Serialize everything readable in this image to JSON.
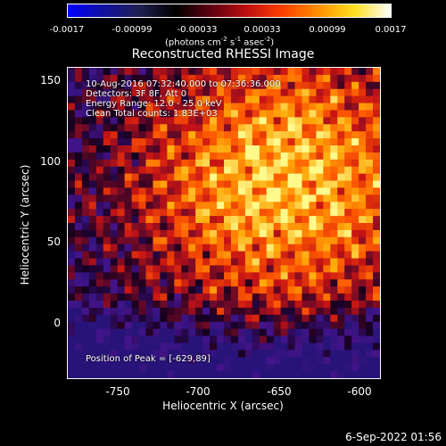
{
  "colorbar": {
    "tick_labels": [
      "-0.0017",
      "-0.00099",
      "-0.00033",
      "0.00033",
      "0.00099",
      "0.0017"
    ],
    "unit_label_prefix": "(photons cm",
    "unit_sup1": "-2",
    "unit_mid1": " s",
    "unit_sup2": "-1",
    "unit_mid2": " asec",
    "unit_sup3": "-2",
    "unit_suffix": ")",
    "colors": [
      "#0000ff",
      "#1010a0",
      "#202050",
      "#000000",
      "#600010",
      "#c01010",
      "#ff4000",
      "#ff9000",
      "#ffe020",
      "#ffffff"
    ]
  },
  "title": "Reconstructed RHESSI Image",
  "info_lines": [
    "10-Aug-2016 07:32:40.000 to 07:36:36.000",
    "Detectors: 3F 8F, Att 0",
    "Energy Range: 12.0 - 25.0 keV",
    "Clean      Total counts: 1.83E+03"
  ],
  "peak_label": "Position of Peak = [-629,89]",
  "xaxis": {
    "label": "Heliocentric X (arcsec)",
    "ticks": [
      "-750",
      "-700",
      "-650",
      "-600"
    ]
  },
  "yaxis": {
    "label": "Heliocentric Y (arcsec)",
    "ticks": [
      "150",
      "100",
      "50",
      "0"
    ]
  },
  "date": "6-Sep-2022 01:56"
}
